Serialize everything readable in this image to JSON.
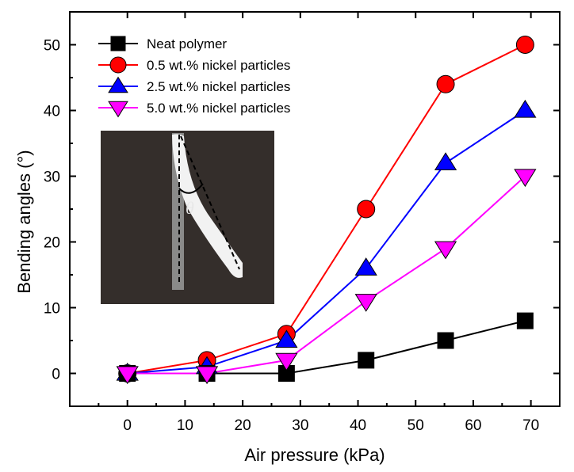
{
  "chart_data": {
    "type": "line",
    "title": "",
    "xlabel": "Air pressure (kPa)",
    "ylabel": "Bending angles (°)",
    "xlim": [
      -10,
      75
    ],
    "ylim": [
      -5,
      55
    ],
    "xticks": [
      0,
      10,
      20,
      30,
      40,
      50,
      60,
      70
    ],
    "yticks": [
      0,
      10,
      20,
      30,
      40,
      50
    ],
    "x": [
      0,
      13.8,
      27.6,
      41.4,
      55.2,
      69
    ],
    "series": [
      {
        "name": "Neat polymer",
        "color": "#000000",
        "marker": "square",
        "values": [
          0,
          0,
          0,
          2,
          5,
          8
        ]
      },
      {
        "name": "0.5 wt.% nickel particles",
        "color": "#ff0000",
        "marker": "circle",
        "values": [
          0,
          2,
          6,
          25,
          44,
          50
        ]
      },
      {
        "name": "2.5 wt.% nickel particles",
        "color": "#0000ff",
        "marker": "triangle-up",
        "values": [
          0,
          1,
          5,
          16,
          32,
          40
        ]
      },
      {
        "name": "5.0 wt.% nickel particles",
        "color": "#ff00ff",
        "marker": "triangle-down",
        "values": [
          0,
          0,
          2,
          11,
          19,
          30
        ]
      }
    ],
    "legend_position": "top-left",
    "inset": {
      "label": "θ",
      "description_icon": "bending-actuator-photo"
    }
  }
}
